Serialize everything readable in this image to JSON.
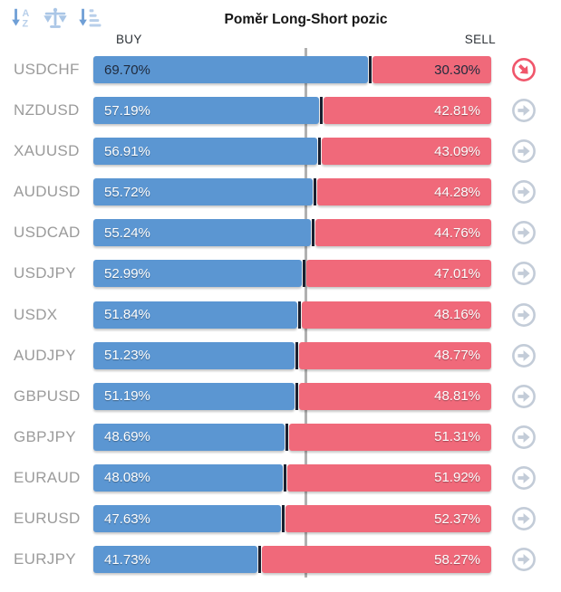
{
  "title": "Poměr Long-Short pozic",
  "headers": {
    "buy": "BUY",
    "sell": "SELL"
  },
  "toolbar": {
    "icons": [
      {
        "name": "sort-alphabetical-icon"
      },
      {
        "name": "balance-scale-icon"
      },
      {
        "name": "sort-amount-icon"
      }
    ]
  },
  "colors": {
    "buy_bar": "#5b96d2",
    "sell_bar": "#f0697a",
    "active_arrow": "#f0566b",
    "inactive_arrow": "#c3ccd8",
    "pair_label": "#9b9b9b",
    "gridline": "#b0b0b0",
    "segment_divider": "#1a2030"
  },
  "chart_data": {
    "type": "bar",
    "orientation": "horizontal-stacked",
    "title": "Poměr Long-Short pozic",
    "categories": [
      "USDCHF",
      "NZDUSD",
      "XAUUSD",
      "AUDUSD",
      "USDCAD",
      "USDJPY",
      "USDX",
      "AUDJPY",
      "GBPUSD",
      "GBPJPY",
      "EURAUD",
      "EURUSD",
      "EURJPY"
    ],
    "series": [
      {
        "name": "BUY",
        "color": "#5b96d2",
        "values": [
          69.7,
          57.19,
          56.91,
          55.72,
          55.24,
          52.99,
          51.84,
          51.23,
          51.19,
          48.69,
          48.08,
          47.63,
          41.73
        ]
      },
      {
        "name": "SELL",
        "color": "#f0697a",
        "values": [
          30.3,
          42.81,
          43.09,
          44.28,
          44.76,
          47.01,
          48.16,
          48.77,
          48.81,
          51.31,
          51.92,
          52.37,
          58.27
        ]
      }
    ],
    "xlim": [
      0,
      100
    ],
    "gridline_at": 50,
    "legend_position": "top (BUY left, SELL right)"
  },
  "rows": [
    {
      "pair": "USDCHF",
      "buy": "69.70%",
      "sell": "30.30%",
      "buy_value": 69.7,
      "active": true,
      "arrow": "down-right"
    },
    {
      "pair": "NZDUSD",
      "buy": "57.19%",
      "sell": "42.81%",
      "buy_value": 57.19,
      "active": false,
      "arrow": "right"
    },
    {
      "pair": "XAUUSD",
      "buy": "56.91%",
      "sell": "43.09%",
      "buy_value": 56.91,
      "active": false,
      "arrow": "right"
    },
    {
      "pair": "AUDUSD",
      "buy": "55.72%",
      "sell": "44.28%",
      "buy_value": 55.72,
      "active": false,
      "arrow": "right"
    },
    {
      "pair": "USDCAD",
      "buy": "55.24%",
      "sell": "44.76%",
      "buy_value": 55.24,
      "active": false,
      "arrow": "right"
    },
    {
      "pair": "USDJPY",
      "buy": "52.99%",
      "sell": "47.01%",
      "buy_value": 52.99,
      "active": false,
      "arrow": "right"
    },
    {
      "pair": "USDX",
      "buy": "51.84%",
      "sell": "48.16%",
      "buy_value": 51.84,
      "active": false,
      "arrow": "right"
    },
    {
      "pair": "AUDJPY",
      "buy": "51.23%",
      "sell": "48.77%",
      "buy_value": 51.23,
      "active": false,
      "arrow": "right"
    },
    {
      "pair": "GBPUSD",
      "buy": "51.19%",
      "sell": "48.81%",
      "buy_value": 51.19,
      "active": false,
      "arrow": "right"
    },
    {
      "pair": "GBPJPY",
      "buy": "48.69%",
      "sell": "51.31%",
      "buy_value": 48.69,
      "active": false,
      "arrow": "right"
    },
    {
      "pair": "EURAUD",
      "buy": "48.08%",
      "sell": "51.92%",
      "buy_value": 48.08,
      "active": false,
      "arrow": "right"
    },
    {
      "pair": "EURUSD",
      "buy": "47.63%",
      "sell": "52.37%",
      "buy_value": 47.63,
      "active": false,
      "arrow": "right"
    },
    {
      "pair": "EURJPY",
      "buy": "41.73%",
      "sell": "58.27%",
      "buy_value": 41.73,
      "active": false,
      "arrow": "right"
    }
  ]
}
